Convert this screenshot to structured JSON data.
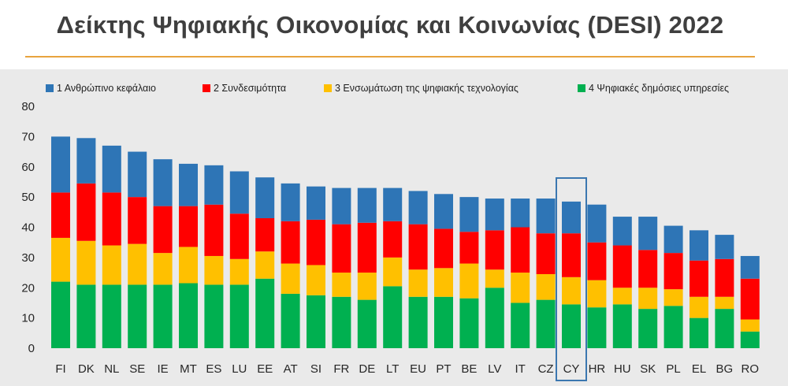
{
  "page": {
    "title": "Δείκτης Ψηφιακής Οικονομίας και Κοινωνίας (DESI) 2022"
  },
  "colors": {
    "accent_rule": "#e8a33d",
    "highlight_box": "#3b77b0",
    "panel_bg": "#eaeaea"
  },
  "chart_data": {
    "type": "bar",
    "stacked": true,
    "title": "Δείκτης Ψηφιακής Οικονομίας και Κοινωνίας (DESI) 2022",
    "xlabel": "",
    "ylabel": "",
    "ylim": [
      0,
      80
    ],
    "yticks": [
      0,
      10,
      20,
      30,
      40,
      50,
      60,
      70,
      80
    ],
    "grid": false,
    "legend_position": "top",
    "highlight_category": "CY",
    "categories": [
      "FI",
      "DK",
      "NL",
      "SE",
      "IE",
      "MT",
      "ES",
      "LU",
      "EE",
      "AT",
      "SI",
      "FR",
      "DE",
      "LT",
      "EU",
      "PT",
      "BE",
      "LV",
      "IT",
      "CZ",
      "CY",
      "HR",
      "HU",
      "SK",
      "PL",
      "EL",
      "BG",
      "RO"
    ],
    "series": [
      {
        "name": "4 Ψηφιακές δημόσιες υπηρεσίες",
        "color": "#00b050",
        "values": [
          22,
          21,
          21,
          21,
          21,
          21.5,
          21,
          21,
          23,
          18,
          17.5,
          17,
          16,
          20.5,
          17,
          17,
          16.5,
          20,
          15,
          16,
          14.5,
          13.5,
          14.5,
          13,
          14,
          10,
          13,
          5.5
        ]
      },
      {
        "name": "3 Ενσωμάτωση της ψηφιακής τεχνολογίας",
        "color": "#ffc000",
        "values": [
          14.5,
          14.5,
          13,
          13.5,
          10.5,
          12,
          9.5,
          8.5,
          9,
          10,
          10,
          8,
          9,
          9.5,
          9,
          9.5,
          11.5,
          6,
          10,
          8.5,
          9,
          9,
          5.5,
          7,
          5.5,
          7,
          4,
          4
        ]
      },
      {
        "name": "2 Συνδεσιμότητα",
        "color": "#ff0000",
        "values": [
          15,
          19,
          17.5,
          15.5,
          15.5,
          13.5,
          17,
          15,
          11,
          14,
          15,
          16,
          16.5,
          12,
          15,
          13,
          10.5,
          13,
          15,
          13.5,
          14.5,
          12.5,
          14,
          12.5,
          12,
          12,
          12.5,
          13.5
        ]
      },
      {
        "name": "1 Ανθρώπινο κεφάλαιο",
        "color": "#2e75b6",
        "values": [
          18.5,
          15,
          15.5,
          15,
          15.5,
          14,
          13,
          14,
          13.5,
          12.5,
          11,
          12,
          11.5,
          11,
          11,
          11.5,
          11.5,
          10.5,
          9.5,
          11.5,
          10.5,
          12.5,
          9.5,
          11,
          9,
          10,
          8,
          7.5
        ]
      }
    ]
  }
}
